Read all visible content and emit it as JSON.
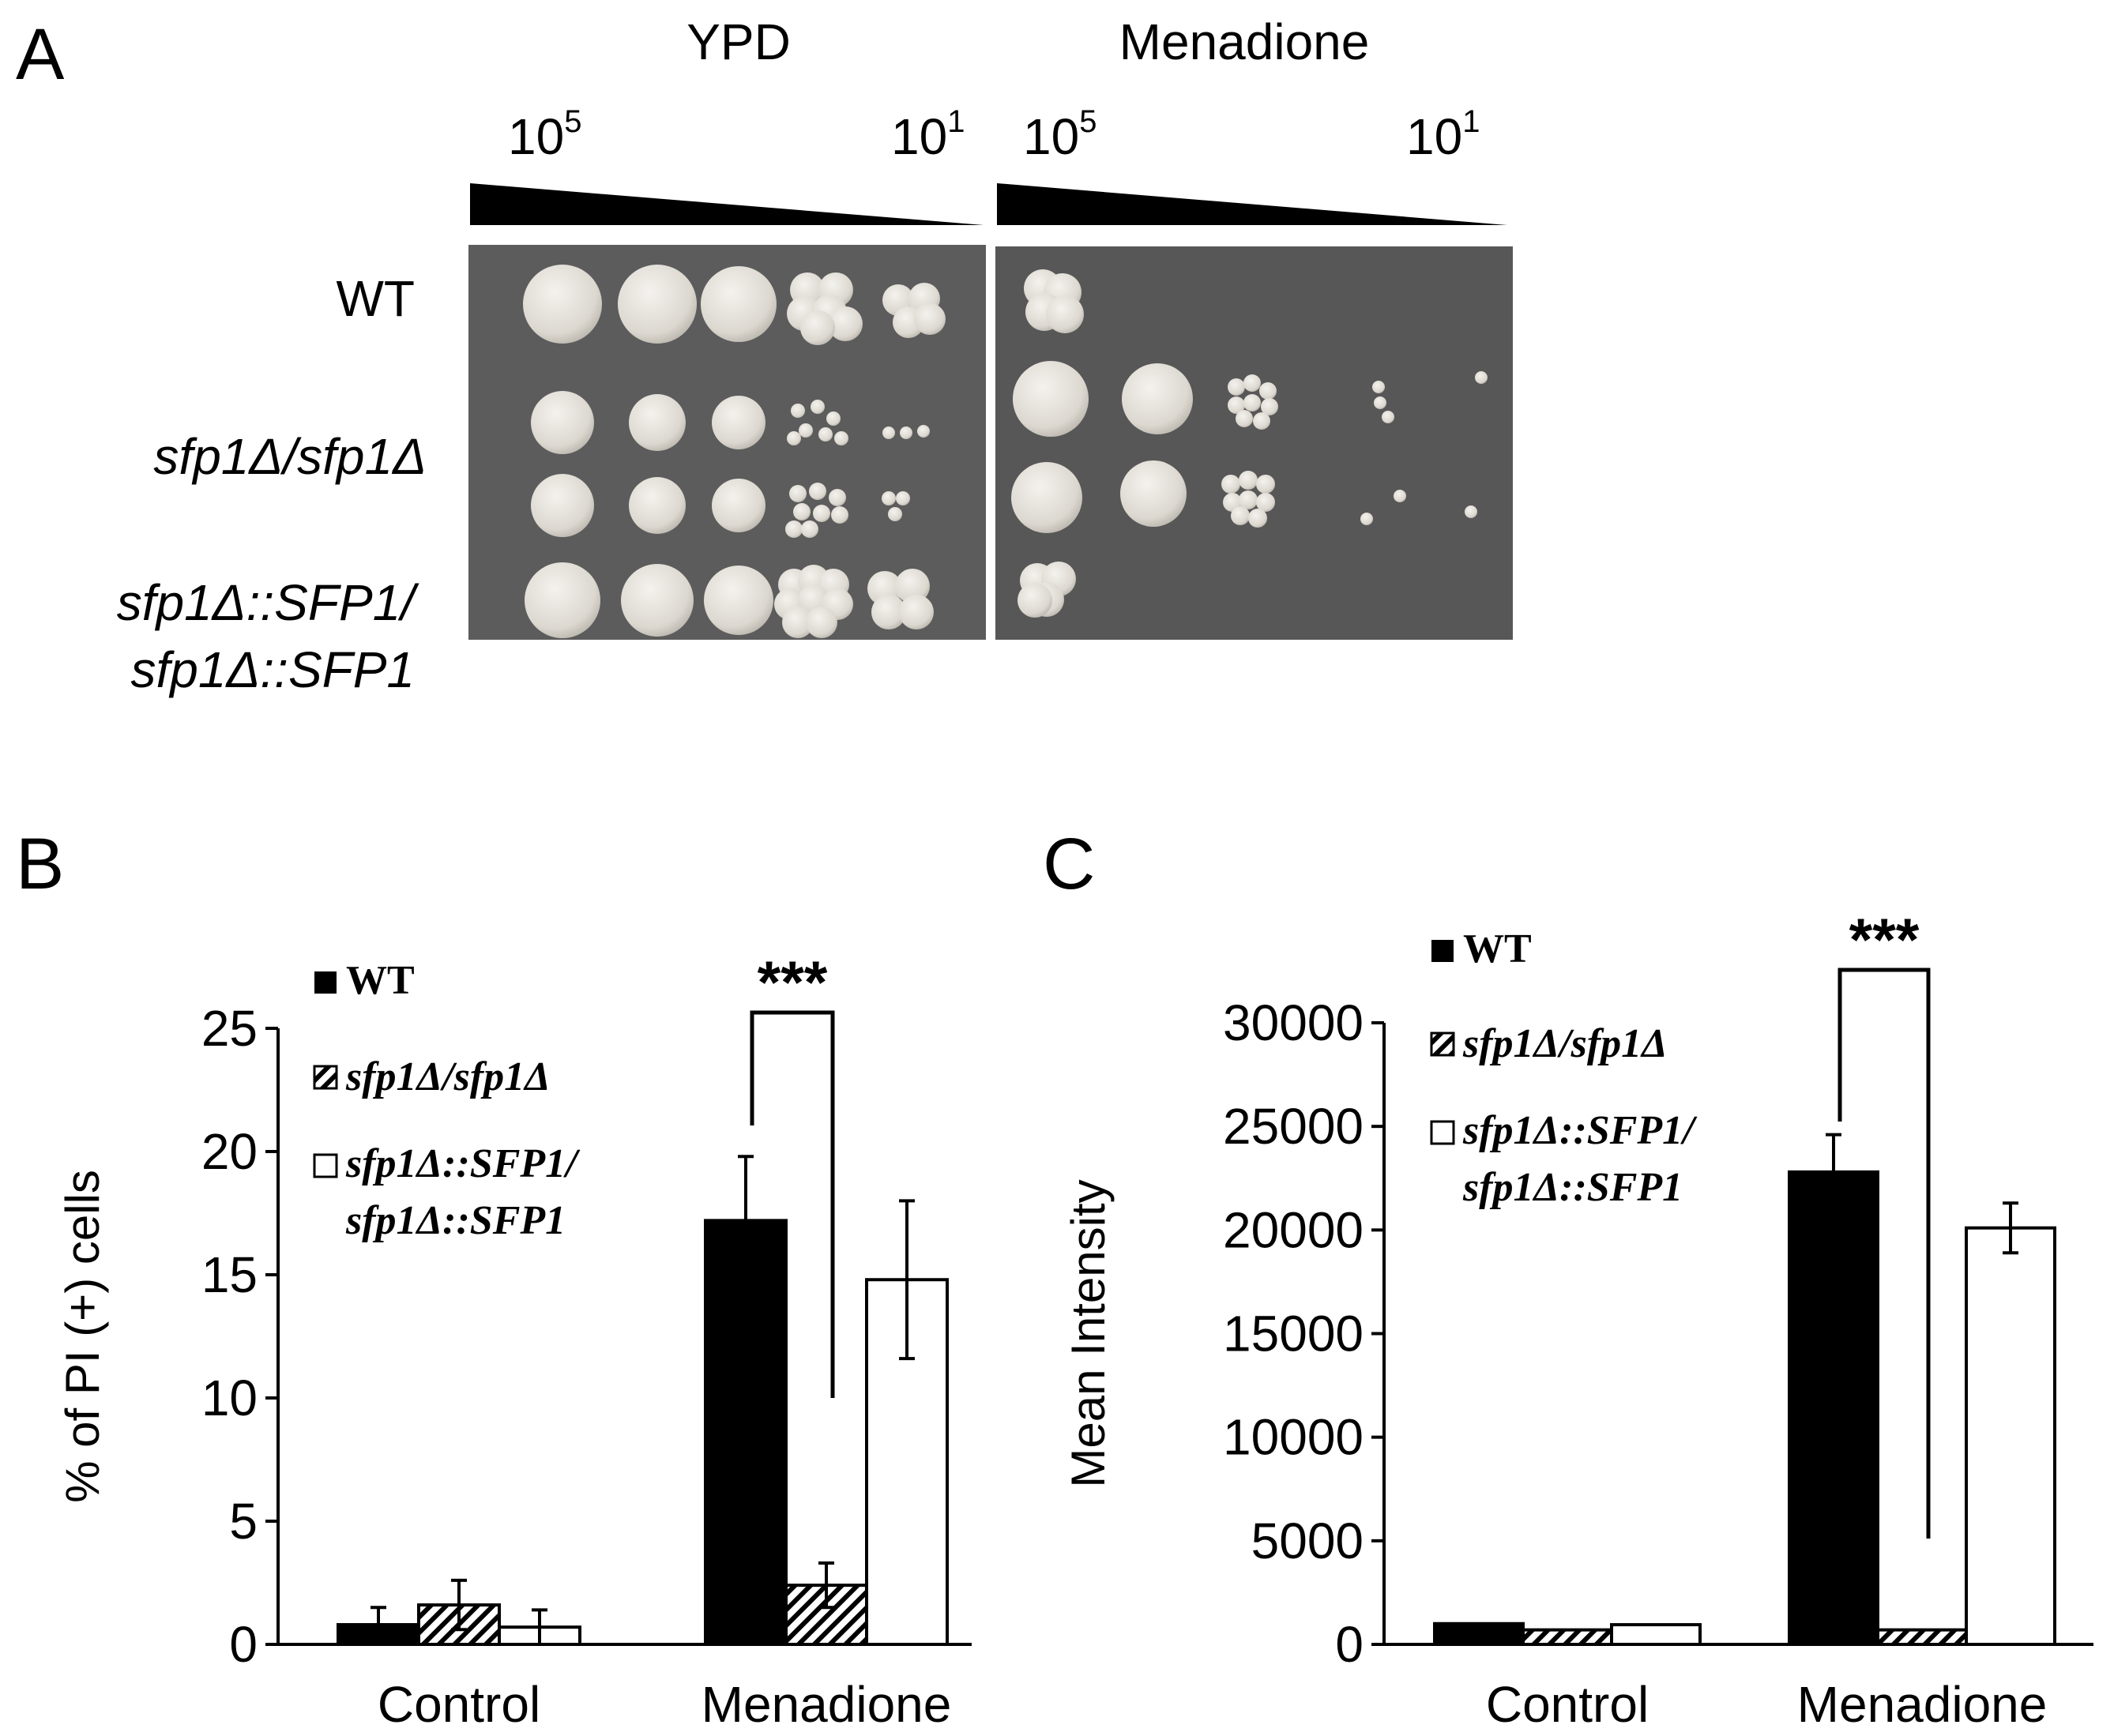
{
  "panels": {
    "a": {
      "letter": "A",
      "conditions": [
        {
          "name": "YPD",
          "dil_high": "10",
          "dil_high_exp": "5",
          "dil_low": "10",
          "dil_low_exp": "1"
        },
        {
          "name": "Menadione",
          "dil_high": "10",
          "dil_high_exp": "5",
          "dil_low": "10",
          "dil_low_exp": "1"
        }
      ],
      "strains": [
        {
          "lines": [
            "WT"
          ]
        },
        {
          "lines": [
            "sfp1Δ/sfp1Δ"
          ]
        },
        {
          "lines": [
            "sfp1Δ::SFP1/",
            "sfp1Δ::SFP1"
          ]
        }
      ],
      "colors": {
        "plate": "#5c5c5c",
        "colony": "#e6e3dc"
      }
    },
    "b": {
      "letter": "B"
    },
    "c": {
      "letter": "C"
    }
  },
  "legend": {
    "wt": "WT",
    "mutant": "sfp1Δ/sfp1Δ",
    "rescue_line1": "sfp1Δ::SFP1/",
    "rescue_line2": "sfp1Δ::SFP1"
  },
  "chart_data": [
    {
      "type": "bar",
      "panel": "B",
      "title": "",
      "xlabel": "",
      "ylabel": "% of PI (+) cells",
      "ylim": [
        0,
        25
      ],
      "yticks": [
        "0",
        "5",
        "10",
        "15",
        "20",
        "25"
      ],
      "categories": [
        "Control",
        "Menadione"
      ],
      "series": [
        {
          "name": "WT",
          "values": [
            0.8,
            17.2
          ],
          "errors": [
            0.7,
            2.6
          ],
          "fill": "#000000"
        },
        {
          "name": "sfp1Δ/sfp1Δ",
          "values": [
            1.6,
            2.4
          ],
          "errors": [
            1.0,
            0.9
          ],
          "fill": "hatch"
        },
        {
          "name": "sfp1Δ::SFP1/sfp1Δ::SFP1",
          "values": [
            0.7,
            14.8
          ],
          "errors": [
            0.7,
            3.2
          ],
          "fill": "#ffffff"
        }
      ],
      "annotation": {
        "text": "***",
        "between": [
          "WT",
          "sfp1Δ/sfp1Δ"
        ],
        "category": "Menadione"
      },
      "legend": "top-left"
    },
    {
      "type": "bar",
      "panel": "C",
      "title": "",
      "xlabel": "",
      "ylabel": "Mean Intensity",
      "ylim": [
        0,
        30000
      ],
      "yticks": [
        "0",
        "5000",
        "10000",
        "15000",
        "20000",
        "25000",
        "30000"
      ],
      "categories": [
        "Control",
        "Menadione"
      ],
      "series": [
        {
          "name": "WT",
          "values": [
            1000,
            22800
          ],
          "errors": [
            0,
            1800
          ],
          "fill": "#000000"
        },
        {
          "name": "sfp1Δ/sfp1Δ",
          "values": [
            700,
            700
          ],
          "errors": [
            0,
            0
          ],
          "fill": "hatch"
        },
        {
          "name": "sfp1Δ::SFP1/sfp1Δ::SFP1",
          "values": [
            950,
            20100
          ],
          "errors": [
            0,
            1200
          ],
          "fill": "#ffffff"
        }
      ],
      "annotation": {
        "text": "***",
        "between": [
          "WT",
          "sfp1Δ/sfp1Δ"
        ],
        "category": "Menadione"
      },
      "legend": "top-left"
    }
  ]
}
